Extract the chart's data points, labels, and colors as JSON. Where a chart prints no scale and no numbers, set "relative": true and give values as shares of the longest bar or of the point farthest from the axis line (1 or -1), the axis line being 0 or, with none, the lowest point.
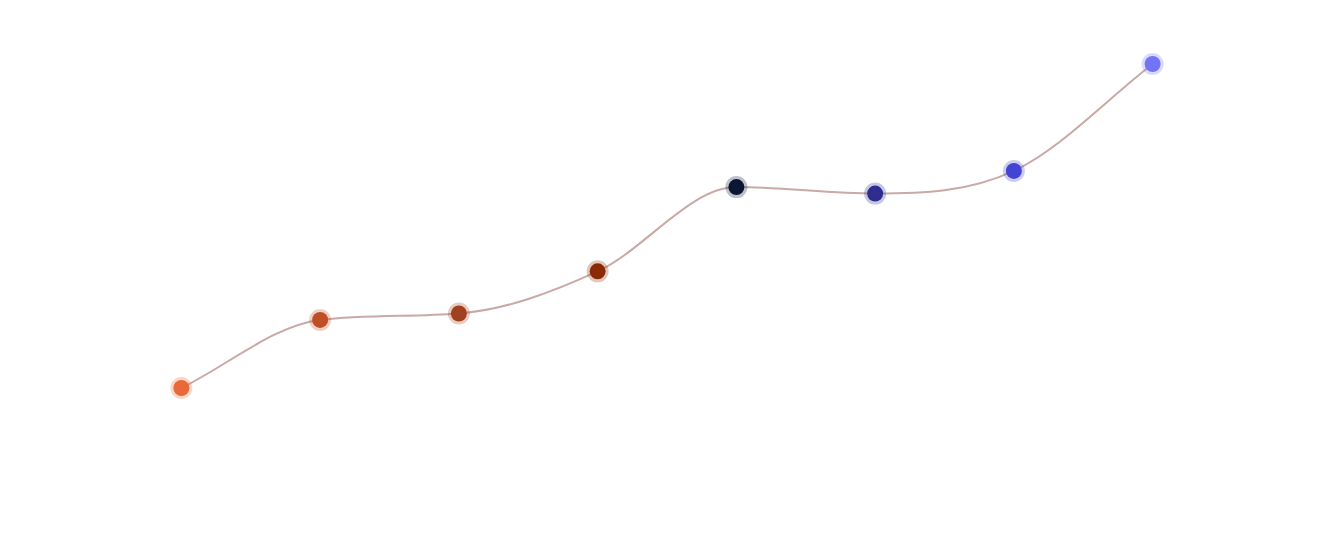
{
  "chart_data": {
    "type": "line",
    "relative": true,
    "categories": [
      null,
      null,
      null,
      null,
      null,
      null,
      null,
      null
    ],
    "marker": "circle",
    "legend": false,
    "series": [
      {
        "color": "#c9a9a6",
        "colors": [
          "#e8693a",
          "#bf4f27",
          "#a0411f",
          "#8b2a05",
          "#0d1633",
          "#2e2e8f",
          "#4444d4",
          "#7373f5"
        ],
        "values": [
          0,
          0.21,
          0.23,
          0.36,
          0.62,
          0.6,
          0.67,
          1
        ]
      }
    ]
  }
}
